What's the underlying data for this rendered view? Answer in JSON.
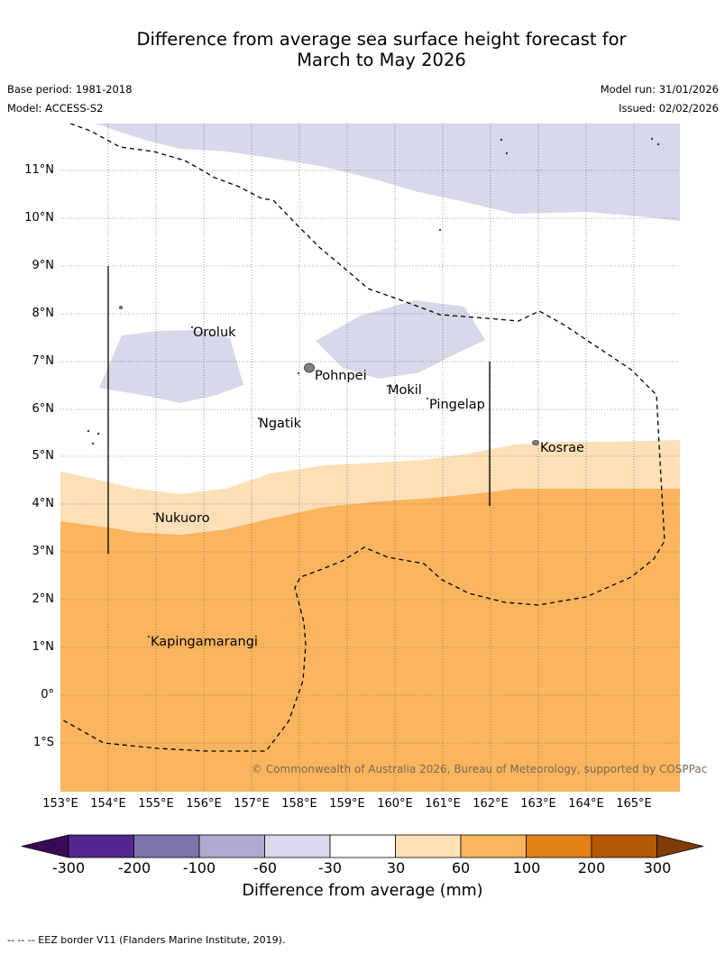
{
  "title": {
    "line1": "Difference from average sea surface height forecast for",
    "line2": "March to May 2026"
  },
  "meta": {
    "base_period": "Base period: 1981-2018",
    "model": "Model: ACCESS-S2",
    "model_run": "Model run: 31/01/2026",
    "issued": "Issued: 02/02/2026"
  },
  "map": {
    "lat_labels": [
      "11°N",
      "10°N",
      "9°N",
      "8°N",
      "7°N",
      "6°N",
      "5°N",
      "4°N",
      "3°N",
      "2°N",
      "1°N",
      "0°",
      "1°S"
    ],
    "lon_labels": [
      "153°E",
      "154°E",
      "155°E",
      "156°E",
      "157°E",
      "158°E",
      "159°E",
      "160°E",
      "161°E",
      "162°E",
      "163°E",
      "164°E",
      "165°E"
    ],
    "places": [
      "Oroluk",
      "Pohnpei",
      "Mokil",
      "Pingelap",
      "Ngatik",
      "Kosrae",
      "Nukuoro",
      "Kapingamarangi"
    ],
    "copyright": "© Commonwealth of Australia 2026, Bureau of Meteorology, supported by COSPPac",
    "colors": {
      "light_purple": "#d7d8e9",
      "light_orange": "#fde0b7",
      "orange": "#fbb55f",
      "land": "#808080"
    }
  },
  "colorbar": {
    "colors": [
      "#3b0a57",
      "#54278f",
      "#7f73ae",
      "#b0a9d2",
      "#d8d9ea",
      "#ffffff",
      "#fde0b7",
      "#fbb55f",
      "#e08214",
      "#b35806",
      "#7f3b08"
    ],
    "ticks": [
      "-300",
      "-200",
      "-100",
      "-60",
      "-30",
      "30",
      "60",
      "100",
      "200",
      "300"
    ],
    "label": "Difference from average (mm)"
  },
  "footer": "--  --  -- EEZ border V11 (Flanders Marine Institute, 2019)."
}
